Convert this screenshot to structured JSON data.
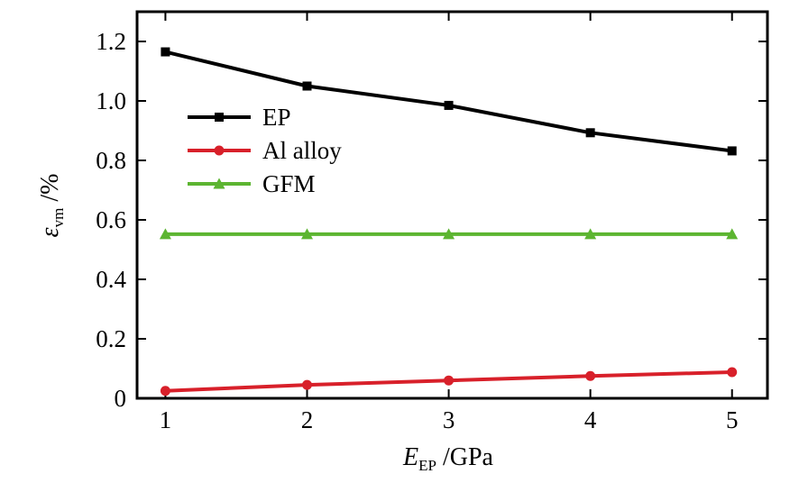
{
  "chart_data": {
    "type": "line",
    "x": [
      1,
      2,
      3,
      4,
      5
    ],
    "xlim": [
      0.8,
      5.25
    ],
    "ylim": [
      0,
      1.3
    ],
    "xticks": [
      1,
      2,
      3,
      4,
      5
    ],
    "yticks": [
      0,
      0.2,
      0.4,
      0.6,
      0.8,
      1.0,
      1.2
    ],
    "xtick_labels": [
      "1",
      "2",
      "3",
      "4",
      "5"
    ],
    "ytick_labels": [
      "0",
      "0.2",
      "0.4",
      "0.6",
      "0.8",
      "1.0",
      "1.2"
    ],
    "xlabel": {
      "main": "E",
      "sub": "EP",
      "rest": " /GPa"
    },
    "ylabel": {
      "main": "ε",
      "sub": "vm",
      "rest": " /%"
    },
    "grid": false,
    "legend_position": "upper-left",
    "series": [
      {
        "name": "EP",
        "color": "#000000",
        "marker": "square",
        "values": [
          1.165,
          1.05,
          0.985,
          0.893,
          0.832
        ]
      },
      {
        "name": "Al alloy",
        "color": "#d8202a",
        "marker": "circle",
        "values": [
          0.025,
          0.045,
          0.06,
          0.075,
          0.088
        ]
      },
      {
        "name": "GFM",
        "color": "#5cb531",
        "marker": "triangle",
        "values": [
          0.552,
          0.552,
          0.552,
          0.552,
          0.552
        ]
      }
    ]
  }
}
